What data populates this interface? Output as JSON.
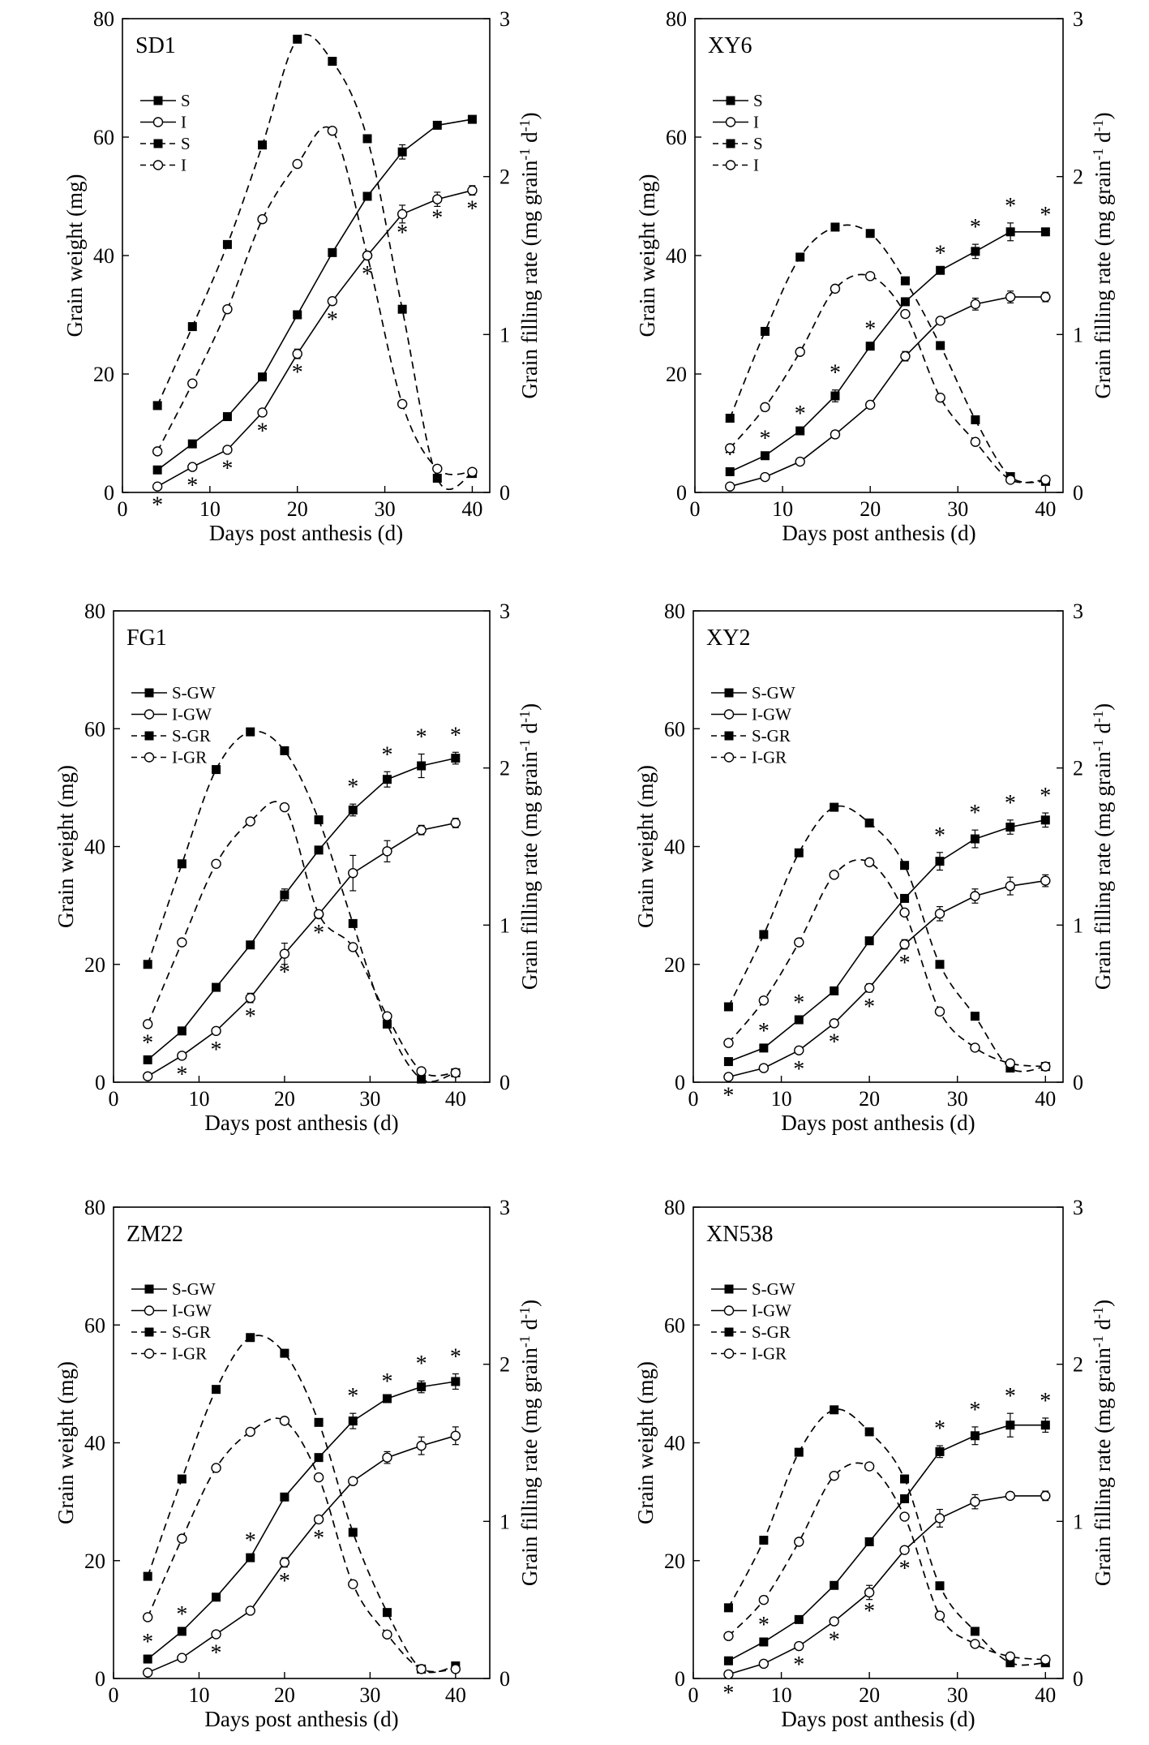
{
  "figure": {
    "x_label": "Days post anthesis (d)",
    "y_label_left": "Grain weight  (mg)",
    "y_label_right_main": "Grain filling rate (mg grain",
    "y_label_right_sup1": "-1",
    "y_label_right_mid": " d",
    "y_label_right_sup2": "-1",
    "y_label_right_end": ")",
    "x_ticks": [
      "0",
      "10",
      "20",
      "30",
      "40"
    ],
    "y_left_ticks": [
      "0",
      "20",
      "40",
      "60",
      "80"
    ],
    "y_right_ticks": [
      "0",
      "1",
      "2",
      "3"
    ],
    "star": "*"
  },
  "chart_data": [
    {
      "type": "line",
      "title": "SD1",
      "xlim": [
        0,
        42
      ],
      "ylim_left": [
        0,
        80
      ],
      "ylim_right": [
        0,
        3
      ],
      "legend": [
        "S",
        "I",
        "S",
        "I"
      ],
      "x": [
        4,
        8,
        12,
        16,
        20,
        24,
        28,
        32,
        36,
        40
      ],
      "series": [
        {
          "name": "S",
          "measure": "grain weight",
          "axis": "left",
          "marker": "filled-square",
          "line": "solid",
          "values": [
            3.8,
            8.2,
            12.8,
            19.5,
            30,
            40.5,
            50,
            57.5,
            62,
            63
          ],
          "errors": [
            0,
            0,
            0,
            0,
            0,
            0,
            0,
            1.2,
            0,
            0
          ],
          "stars": [
            false,
            false,
            false,
            false,
            false,
            false,
            false,
            false,
            false,
            false
          ]
        },
        {
          "name": "I",
          "measure": "grain weight",
          "axis": "left",
          "marker": "open-circle",
          "line": "solid",
          "values": [
            1,
            4.3,
            7.2,
            13.5,
            23.4,
            32.3,
            40,
            47,
            49.5,
            51
          ],
          "errors": [
            0,
            0,
            0,
            0,
            0.8,
            0,
            0,
            1.5,
            1.2,
            0.8
          ],
          "stars": [
            true,
            true,
            true,
            true,
            true,
            true,
            true,
            true,
            true,
            true
          ]
        },
        {
          "name": "S",
          "measure": "grain filling rate",
          "axis": "right",
          "marker": "filled-square",
          "line": "dashed",
          "values": [
            0.55,
            1.05,
            1.57,
            2.2,
            2.87,
            2.73,
            2.24,
            1.16,
            0.09,
            0.12
          ]
        },
        {
          "name": "I",
          "measure": "grain filling rate",
          "axis": "right",
          "marker": "open-circle",
          "line": "dashed",
          "values": [
            0.26,
            0.69,
            1.16,
            1.73,
            2.08,
            2.29,
            1.5,
            0.56,
            0.15,
            0.13
          ]
        }
      ]
    },
    {
      "type": "line",
      "title": "XY6",
      "xlim": [
        0,
        42
      ],
      "ylim_left": [
        0,
        80
      ],
      "ylim_right": [
        0,
        3
      ],
      "legend": [
        "S",
        "I",
        "S",
        "I"
      ],
      "x": [
        4,
        8,
        12,
        16,
        20,
        24,
        28,
        32,
        36,
        40
      ],
      "series": [
        {
          "name": "S",
          "measure": "grain weight",
          "axis": "left",
          "marker": "filled-square",
          "line": "solid",
          "values": [
            3.5,
            6.2,
            10.4,
            16.3,
            24.7,
            32.2,
            37.5,
            40.7,
            44,
            44
          ],
          "errors": [
            0,
            0,
            0,
            1,
            0,
            0,
            0,
            1.2,
            1.5,
            0
          ],
          "stars": [
            true,
            true,
            true,
            true,
            true,
            true,
            true,
            true,
            true,
            true
          ]
        },
        {
          "name": "I",
          "measure": "grain weight",
          "axis": "left",
          "marker": "open-circle",
          "line": "solid",
          "values": [
            1,
            2.6,
            5.2,
            9.8,
            14.8,
            23,
            29,
            31.8,
            33,
            33
          ],
          "errors": [
            0,
            0,
            0,
            0.6,
            0,
            0.8,
            0,
            1,
            1,
            0.8
          ],
          "stars": [
            false,
            false,
            false,
            false,
            false,
            false,
            false,
            false,
            false,
            false
          ]
        },
        {
          "name": "S",
          "measure": "grain filling rate",
          "axis": "right",
          "marker": "filled-square",
          "line": "dashed",
          "values": [
            0.47,
            1.02,
            1.49,
            1.68,
            1.64,
            1.34,
            0.93,
            0.46,
            0.1,
            0.07
          ]
        },
        {
          "name": "I",
          "measure": "grain filling rate",
          "axis": "right",
          "marker": "open-circle",
          "line": "dashed",
          "values": [
            0.28,
            0.54,
            0.89,
            1.29,
            1.37,
            1.13,
            0.6,
            0.32,
            0.08,
            0.08
          ]
        }
      ]
    },
    {
      "type": "line",
      "title": "FG1",
      "xlim": [
        0,
        44
      ],
      "ylim_left": [
        0,
        80
      ],
      "ylim_right": [
        0,
        3
      ],
      "legend": [
        "S-GW",
        "I-GW",
        "S-GR",
        "I-GR"
      ],
      "x": [
        4,
        8,
        12,
        16,
        20,
        24,
        28,
        32,
        36,
        40
      ],
      "series": [
        {
          "name": "S-GW",
          "measure": "grain weight",
          "axis": "left",
          "marker": "filled-square",
          "line": "solid",
          "values": [
            3.8,
            8.7,
            16.1,
            23.3,
            31.8,
            39.4,
            46.2,
            51.4,
            53.7,
            55
          ],
          "errors": [
            0,
            0,
            0,
            0,
            1,
            0,
            1,
            1.3,
            2,
            1
          ],
          "stars": [
            true,
            false,
            false,
            false,
            false,
            false,
            true,
            true,
            true,
            true
          ]
        },
        {
          "name": "I-GW",
          "measure": "grain weight",
          "axis": "left",
          "marker": "open-circle",
          "line": "solid",
          "values": [
            1,
            4.5,
            8.7,
            14.3,
            21.8,
            28.5,
            35.5,
            39.2,
            42.8,
            44
          ],
          "errors": [
            0,
            0,
            0,
            0.8,
            1.8,
            0,
            3,
            1.8,
            0.8,
            0.8
          ],
          "stars": [
            false,
            true,
            true,
            true,
            true,
            true,
            false,
            false,
            false,
            false
          ]
        },
        {
          "name": "S-GR",
          "measure": "grain filling rate",
          "axis": "right",
          "marker": "filled-square",
          "line": "dashed",
          "values": [
            0.75,
            1.39,
            1.99,
            2.23,
            2.11,
            1.67,
            1.01,
            0.37,
            0.02,
            0.06
          ]
        },
        {
          "name": "I-GR",
          "measure": "grain filling rate",
          "axis": "right",
          "marker": "open-circle",
          "line": "dashed",
          "values": [
            0.37,
            0.89,
            1.39,
            1.66,
            1.75,
            1.07,
            0.86,
            0.42,
            0.07,
            0.06
          ]
        }
      ]
    },
    {
      "type": "line",
      "title": "XY2",
      "xlim": [
        0,
        42
      ],
      "ylim_left": [
        0,
        80
      ],
      "ylim_right": [
        0,
        3
      ],
      "legend": [
        "S-GW",
        "I-GW",
        "S-GR",
        "I-GR"
      ],
      "x": [
        4,
        8,
        12,
        16,
        20,
        24,
        28,
        32,
        36,
        40
      ],
      "series": [
        {
          "name": "S-GW",
          "measure": "grain weight",
          "axis": "left",
          "marker": "filled-square",
          "line": "solid",
          "values": [
            3.5,
            5.8,
            10.6,
            15.5,
            24,
            31.2,
            37.5,
            41.3,
            43.3,
            44.5
          ],
          "errors": [
            0,
            0,
            0,
            0,
            0,
            0,
            1.5,
            1.5,
            1.2,
            1.2
          ],
          "stars": [
            false,
            true,
            true,
            false,
            false,
            false,
            true,
            true,
            true,
            true
          ]
        },
        {
          "name": "I-GW",
          "measure": "grain weight",
          "axis": "left",
          "marker": "open-circle",
          "line": "solid",
          "values": [
            0.9,
            2.4,
            5.4,
            10,
            16,
            23.4,
            28.6,
            31.6,
            33.3,
            34.2
          ],
          "errors": [
            0,
            0,
            0,
            0.5,
            0.7,
            0.8,
            1.2,
            1.2,
            1.5,
            1
          ],
          "stars": [
            true,
            false,
            true,
            true,
            true,
            true,
            false,
            false,
            false,
            false
          ]
        },
        {
          "name": "S-GR",
          "measure": "grain filling rate",
          "axis": "right",
          "marker": "filled-square",
          "line": "dashed",
          "values": [
            0.48,
            0.94,
            1.46,
            1.75,
            1.65,
            1.38,
            0.75,
            0.42,
            0.09,
            0.1
          ]
        },
        {
          "name": "I-GR",
          "measure": "grain filling rate",
          "axis": "right",
          "marker": "open-circle",
          "line": "dashed",
          "values": [
            0.25,
            0.52,
            0.89,
            1.32,
            1.4,
            1.08,
            0.45,
            0.22,
            0.12,
            0.1
          ]
        }
      ]
    },
    {
      "type": "line",
      "title": "ZM22",
      "xlim": [
        0,
        44
      ],
      "ylim_left": [
        0,
        80
      ],
      "ylim_right": [
        0,
        3
      ],
      "legend": [
        "S-GW",
        "I-GW",
        "S-GR",
        "I-GR"
      ],
      "x": [
        4,
        8,
        12,
        16,
        20,
        24,
        28,
        32,
        36,
        40
      ],
      "series": [
        {
          "name": "S-GW",
          "measure": "grain weight",
          "axis": "left",
          "marker": "filled-square",
          "line": "solid",
          "values": [
            3.3,
            8,
            13.8,
            20.5,
            30.8,
            37.5,
            43.7,
            47.5,
            49.5,
            50.4
          ],
          "errors": [
            0,
            0,
            0,
            0,
            0,
            0,
            1.3,
            0,
            1,
            1.3
          ],
          "stars": [
            true,
            true,
            false,
            true,
            false,
            false,
            true,
            true,
            true,
            true
          ]
        },
        {
          "name": "I-GW",
          "measure": "grain weight",
          "axis": "left",
          "marker": "open-circle",
          "line": "solid",
          "values": [
            1,
            3.5,
            7.5,
            11.5,
            19.7,
            27,
            33.5,
            37.5,
            39.5,
            41.2
          ],
          "errors": [
            0,
            0,
            0,
            0,
            0.8,
            0,
            0,
            1,
            1.5,
            1.5
          ],
          "stars": [
            false,
            false,
            true,
            false,
            true,
            true,
            false,
            false,
            false,
            false
          ]
        },
        {
          "name": "S-GR",
          "measure": "grain filling rate",
          "axis": "right",
          "marker": "filled-square",
          "line": "dashed",
          "values": [
            0.65,
            1.27,
            1.84,
            2.17,
            2.07,
            1.63,
            0.93,
            0.42,
            0.06,
            0.08
          ]
        },
        {
          "name": "I-GR",
          "measure": "grain filling rate",
          "axis": "right",
          "marker": "open-circle",
          "line": "dashed",
          "values": [
            0.39,
            0.89,
            1.34,
            1.57,
            1.64,
            1.28,
            0.6,
            0.28,
            0.06,
            0.06
          ]
        }
      ]
    },
    {
      "type": "line",
      "title": "XN538",
      "xlim": [
        0,
        42
      ],
      "ylim_left": [
        0,
        80
      ],
      "ylim_right": [
        0,
        3
      ],
      "legend": [
        "S-GW",
        "I-GW",
        "S-GR",
        "I-GR"
      ],
      "x": [
        4,
        8,
        12,
        16,
        20,
        24,
        28,
        32,
        36,
        40
      ],
      "series": [
        {
          "name": "S-GW",
          "measure": "grain weight",
          "axis": "left",
          "marker": "filled-square",
          "line": "solid",
          "values": [
            3,
            6.2,
            10,
            15.8,
            23.2,
            30.5,
            38.5,
            41.2,
            43,
            43
          ],
          "errors": [
            0,
            0,
            0,
            0,
            0,
            0,
            1,
            1.5,
            2,
            1.2
          ],
          "stars": [
            false,
            true,
            false,
            false,
            false,
            false,
            true,
            true,
            true,
            true
          ]
        },
        {
          "name": "I-GW",
          "measure": "grain weight",
          "axis": "left",
          "marker": "open-circle",
          "line": "solid",
          "values": [
            0.7,
            2.5,
            5.5,
            9.7,
            14.6,
            21.8,
            27.2,
            30,
            31,
            31
          ],
          "errors": [
            0,
            0,
            0,
            0,
            1.2,
            0,
            1.5,
            1.2,
            0.5,
            0.8
          ],
          "stars": [
            true,
            false,
            true,
            true,
            true,
            true,
            false,
            false,
            false,
            false
          ]
        },
        {
          "name": "S-GR",
          "measure": "grain filling rate",
          "axis": "right",
          "marker": "filled-square",
          "line": "dashed",
          "values": [
            0.45,
            0.88,
            1.44,
            1.71,
            1.57,
            1.27,
            0.59,
            0.3,
            0.1,
            0.1
          ]
        },
        {
          "name": "I-GR",
          "measure": "grain filling rate",
          "axis": "right",
          "marker": "open-circle",
          "line": "dashed",
          "values": [
            0.27,
            0.5,
            0.87,
            1.29,
            1.35,
            1.03,
            0.4,
            0.22,
            0.14,
            0.12
          ]
        }
      ]
    }
  ]
}
